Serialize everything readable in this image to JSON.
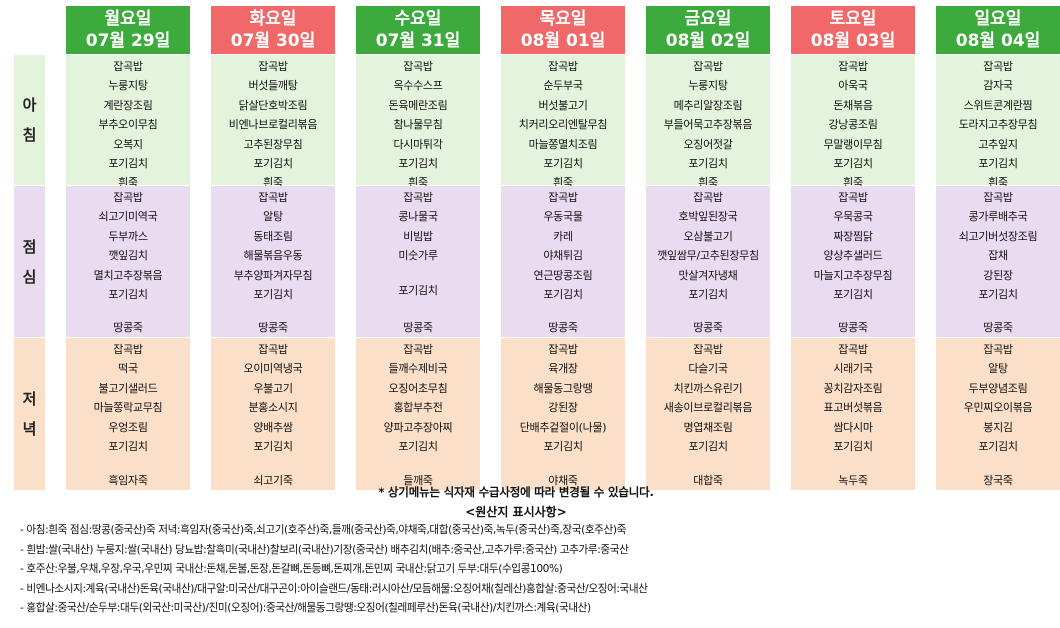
{
  "days": [
    {
      "name": "월요일",
      "date": "07월 29일",
      "color": "green"
    },
    {
      "name": "화요일",
      "date": "07월 30일",
      "color": "red"
    },
    {
      "name": "수요일",
      "date": "07월 31일",
      "color": "green"
    },
    {
      "name": "목요일",
      "date": "08월 01일",
      "color": "red"
    },
    {
      "name": "금요일",
      "date": "08월 02일",
      "color": "green"
    },
    {
      "name": "토요일",
      "date": "08월 03일",
      "color": "red"
    },
    {
      "name": "일요일",
      "date": "08월 04일",
      "color": "green"
    }
  ],
  "meals": [
    {
      "key": "breakfast",
      "label_chars": [
        "아",
        "침"
      ],
      "items": [
        [
          "잡곡밥",
          "누룽지탕",
          "계란장조림",
          "부추오이무침",
          "오복지",
          "포기김치",
          "흰죽"
        ],
        [
          "잡곡밥",
          "버섯들깨탕",
          "닭살단호박조림",
          "비엔나브로컬리볶음",
          "고추된장무침",
          "포기김치",
          "흰죽"
        ],
        [
          "잡곡밥",
          "옥수수스프",
          "돈육메란조림",
          "참나물무침",
          "다시마튀각",
          "포기김치",
          "흰죽"
        ],
        [
          "잡곡밥",
          "순두부국",
          "버섯불고기",
          "치커리오리엔탈무침",
          "마늘쫑멸치조림",
          "포기김치",
          "흰죽"
        ],
        [
          "잡곡밥",
          "누룽지탕",
          "메추리알장조림",
          "부들어묵고추장볶음",
          "오징어젓갈",
          "포기김치",
          "흰죽"
        ],
        [
          "잡곡밥",
          "아욱국",
          "돈채볶음",
          "강낭콩조림",
          "무말랭이무침",
          "포기김치",
          "흰죽"
        ],
        [
          "잡곡밥",
          "감자국",
          "스위트콘계란찜",
          "도라지고추장무침",
          "고추잎지",
          "포기김치",
          "흰죽"
        ]
      ]
    },
    {
      "key": "lunch",
      "label_chars": [
        "점",
        "심"
      ],
      "items": [
        [
          "잡곡밥",
          "쇠고기미역국",
          "두부까스",
          "깻잎김치",
          "멸치고추장볶음",
          "포기김치",
          "",
          "땅콩죽"
        ],
        [
          "잡곡밥",
          "알탕",
          "동태조림",
          "해물볶음우동",
          "부추양파겨자무침",
          "포기김치",
          "",
          "땅콩죽"
        ],
        [
          "잡곡밥",
          "콩나물국",
          "비빔밥",
          "미숫가루",
          "",
          "포기김치",
          "",
          "땅콩죽"
        ],
        [
          "잡곡밥",
          "우동국물",
          "카레",
          "야채튀김",
          "연근땅콩조림",
          "포기김치",
          "",
          "땅콩죽"
        ],
        [
          "잡곡밥",
          "호박잎된장국",
          "오삼불고기",
          "깻잎쌈무/고추된장무침",
          "맛살겨자냉채",
          "포기김치",
          "",
          "땅콩죽"
        ],
        [
          "잡곡밥",
          "우묵콩국",
          "짜장찜닭",
          "양상추샐러드",
          "마늘지고추장무침",
          "포기김치",
          "",
          "땅콩죽"
        ],
        [
          "잡곡밥",
          "콩가루배추국",
          "쇠고기버섯장조림",
          "잡채",
          "강된장",
          "포기김치",
          "",
          "땅콩죽"
        ]
      ]
    },
    {
      "key": "dinner",
      "label_chars": [
        "저",
        "녁"
      ],
      "items": [
        [
          "잡곡밥",
          "떡국",
          "불고기샐러드",
          "마늘쫑락교무침",
          "우엉조림",
          "포기김치",
          "",
          "흑임자죽"
        ],
        [
          "잡곡밥",
          "오이미역냉국",
          "우불고기",
          "분홍소시지",
          "양배추쌈",
          "포기김치",
          "",
          "쇠고기죽"
        ],
        [
          "잡곡밥",
          "들깨수제비국",
          "오징어초무침",
          "홍합부추전",
          "양파고추장아찌",
          "포기김치",
          "",
          "들깨죽"
        ],
        [
          "잡곡밥",
          "육개장",
          "해물동그랑땡",
          "강된장",
          "단배추겉절이(나물)",
          "포기김치",
          "",
          "야채죽"
        ],
        [
          "잡곡밥",
          "다슬기국",
          "치킨까스유린기",
          "새송이브로컬리볶음",
          "명엽채조림",
          "포기김치",
          "",
          "대합죽"
        ],
        [
          "잡곡밥",
          "시래기국",
          "꽁치감자조림",
          "표고버섯볶음",
          "쌈다시마",
          "포기김치",
          "",
          "녹두죽"
        ],
        [
          "잡곡밥",
          "알탕",
          "두부양념조림",
          "우민찌오이볶음",
          "봉지김",
          "포기김치",
          "",
          "장국죽"
        ]
      ]
    }
  ],
  "notice": "* 상기메뉴는 식자재 수급사정에 따라 변경될 수 있습니다.",
  "origin_title": "<원산지 표시사항>",
  "origin_lines": [
    "- 아침:흰죽 점심:땅콩(중국산)죽 저녁:흑임자(중국산)죽,쇠고기(호주산)죽,들깨(중국산)죽,야채죽,대합(중국산)죽,녹두(중국산)죽,장국(호주산)죽",
    "- 흰밥:쌀(국내산) 누룽지:쌀(국내산) 당뇨밥:찰흑미(국내산)찰보리(국내산)기장(중국산) 배추김치(배추:중국산,고추가루:중국산) 고추가루:중국산",
    "- 호주산:우불,우채,우장,우국,우민찌 국내산:돈채,돈불,돈장,돈갈뼈,돈등뼈,돈찌개,돈민찌 국내산:닭고기 두부:대두(수입콩100%)",
    "- 비엔나소시지:계육(국내산)돈육(국내산)/대구알:미국산/대구곤이:아이슬랜드/동태:러시아산/모듬해물:오징어채(칠레산)홍합살:중국산/오징어:국내산",
    "- 홍합살:중국산/순두부:대두(외국산:미국산)/진미(오징어):중국산/해물동그랑땡:오징어(칠레페루산)돈육(국내산)/치킨까스:계육(국내산)"
  ]
}
